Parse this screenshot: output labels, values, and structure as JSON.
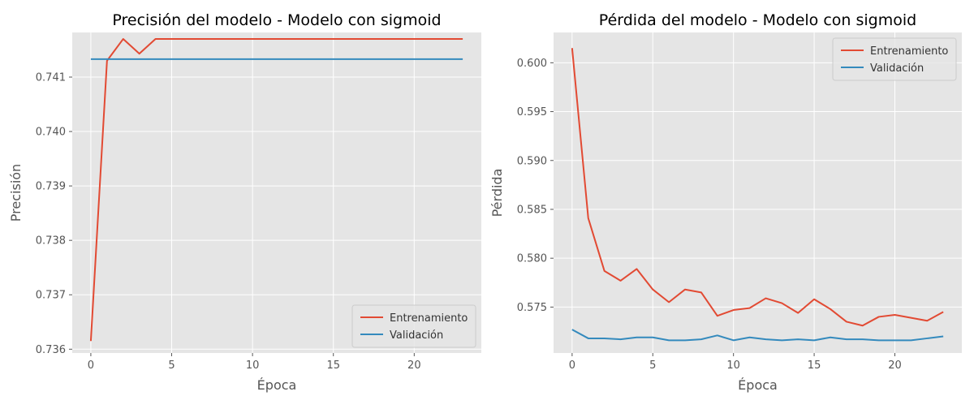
{
  "chart_data": [
    {
      "type": "line",
      "title": "Precisión del modelo - Modelo con sigmoid",
      "xlabel": "Época",
      "ylabel": "Precisión",
      "x": [
        0,
        1,
        2,
        3,
        4,
        5,
        6,
        7,
        8,
        9,
        10,
        11,
        12,
        13,
        14,
        15,
        16,
        17,
        18,
        19,
        20,
        21,
        22,
        23
      ],
      "xlim": [
        -1.15,
        24.15
      ],
      "ylim": [
        0.73593,
        0.74182
      ],
      "xticks": [
        0,
        5,
        10,
        15,
        20
      ],
      "xtick_labels": [
        "0",
        "5",
        "10",
        "15",
        "20"
      ],
      "yticks": [
        0.736,
        0.737,
        0.738,
        0.739,
        0.74,
        0.741
      ],
      "ytick_labels": [
        "0.736",
        "0.737",
        "0.738",
        "0.739",
        "0.740",
        "0.741"
      ],
      "grid": true,
      "legend_position": "lower right",
      "series": [
        {
          "name": "Entrenamiento",
          "color": "#E24A33",
          "values": [
            0.73615,
            0.7413,
            0.7417,
            0.74143,
            0.7417,
            0.7417,
            0.7417,
            0.7417,
            0.7417,
            0.7417,
            0.7417,
            0.7417,
            0.7417,
            0.7417,
            0.7417,
            0.7417,
            0.7417,
            0.7417,
            0.7417,
            0.7417,
            0.7417,
            0.7417,
            0.7417,
            0.7417
          ]
        },
        {
          "name": "Validación",
          "color": "#348ABD",
          "values": [
            0.74133,
            0.74133,
            0.74133,
            0.74133,
            0.74133,
            0.74133,
            0.74133,
            0.74133,
            0.74133,
            0.74133,
            0.74133,
            0.74133,
            0.74133,
            0.74133,
            0.74133,
            0.74133,
            0.74133,
            0.74133,
            0.74133,
            0.74133,
            0.74133,
            0.74133,
            0.74133,
            0.74133
          ]
        }
      ]
    },
    {
      "type": "line",
      "title": "Pérdida del modelo - Modelo con sigmoid",
      "xlabel": "Época",
      "ylabel": "Pérdida",
      "x": [
        0,
        1,
        2,
        3,
        4,
        5,
        6,
        7,
        8,
        9,
        10,
        11,
        12,
        13,
        14,
        15,
        16,
        17,
        18,
        19,
        20,
        21,
        22,
        23
      ],
      "xlim": [
        -1.15,
        24.15
      ],
      "ylim": [
        0.5703,
        0.6031
      ],
      "xticks": [
        0,
        5,
        10,
        15,
        20
      ],
      "xtick_labels": [
        "0",
        "5",
        "10",
        "15",
        "20"
      ],
      "yticks": [
        0.575,
        0.58,
        0.585,
        0.59,
        0.595,
        0.6
      ],
      "ytick_labels": [
        "0.575",
        "0.580",
        "0.585",
        "0.590",
        "0.595",
        "0.600"
      ],
      "grid": true,
      "legend_position": "upper right",
      "series": [
        {
          "name": "Entrenamiento",
          "color": "#E24A33",
          "values": [
            0.6015,
            0.5841,
            0.5787,
            0.5777,
            0.5789,
            0.5768,
            0.5755,
            0.5768,
            0.5765,
            0.5741,
            0.5747,
            0.5749,
            0.5759,
            0.5754,
            0.5744,
            0.5758,
            0.5748,
            0.5735,
            0.5731,
            0.574,
            0.5742,
            0.5739,
            0.5736,
            0.5745
          ]
        },
        {
          "name": "Validación",
          "color": "#348ABD",
          "values": [
            0.5727,
            0.5718,
            0.5718,
            0.5717,
            0.5719,
            0.5719,
            0.5716,
            0.5716,
            0.5717,
            0.5721,
            0.5716,
            0.5719,
            0.5717,
            0.5716,
            0.5717,
            0.5716,
            0.5719,
            0.5717,
            0.5717,
            0.5716,
            0.5716,
            0.5716,
            0.5718,
            0.572
          ]
        }
      ]
    }
  ]
}
